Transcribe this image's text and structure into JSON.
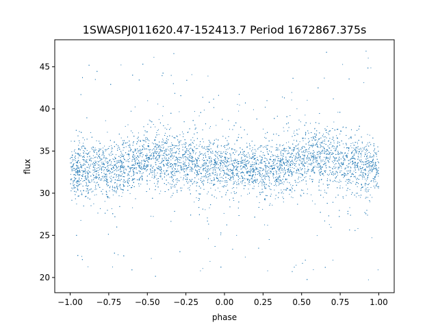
{
  "chart_data": {
    "type": "scatter",
    "title": "1SWASPJ011620.47-152413.7 Period 1672867.375s",
    "xlabel": "phase",
    "ylabel": "flux",
    "xlim": [
      -1.1,
      1.1
    ],
    "ylim": [
      18.2,
      48.2
    ],
    "xticks": [
      -1.0,
      -0.75,
      -0.5,
      -0.25,
      0.0,
      0.25,
      0.5,
      0.75,
      1.0
    ],
    "xtick_labels": [
      "−1.00",
      "−0.75",
      "−0.50",
      "−0.25",
      "0.00",
      "0.25",
      "0.50",
      "0.75",
      "1.00"
    ],
    "yticks": [
      20,
      25,
      30,
      35,
      40,
      45
    ],
    "ytick_labels": [
      "20",
      "25",
      "30",
      "35",
      "40",
      "45"
    ],
    "grid": false,
    "legend": "none",
    "series": [
      {
        "color": "#1f77b4",
        "marker_size": 1,
        "band": {
          "phase": [
            -1.0,
            -0.75,
            -0.5,
            -0.4,
            -0.25,
            0.0,
            0.25,
            0.4,
            0.6,
            0.75,
            1.0
          ],
          "median_flux": [
            32.8,
            32.8,
            34.0,
            34.3,
            33.6,
            33.0,
            32.8,
            33.5,
            34.3,
            33.8,
            32.8
          ],
          "spread": [
            1.6,
            1.6,
            1.8,
            1.8,
            1.6,
            1.5,
            1.5,
            1.7,
            1.8,
            1.7,
            1.6
          ]
        },
        "outlier_range": [
          19.5,
          47.0
        ],
        "point_count": 9000
      }
    ]
  }
}
